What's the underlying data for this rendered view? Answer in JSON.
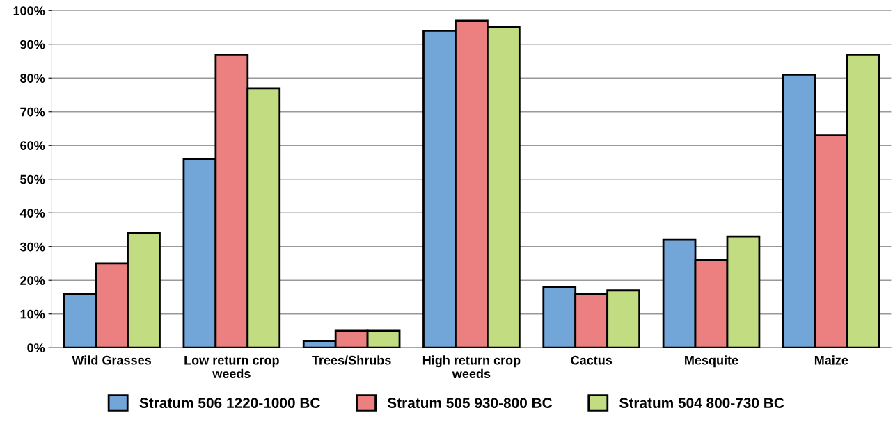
{
  "chart_data": {
    "type": "bar",
    "categories": [
      "Wild Grasses",
      "Low return crop\nweeds",
      "Trees/Shrubs",
      "High return crop\nweeds",
      "Cactus",
      "Mesquite",
      "Maize"
    ],
    "series": [
      {
        "name": "Stratum 506 1220-1000 BC",
        "color": "#72a6d8",
        "values": [
          16,
          56,
          2,
          94,
          18,
          32,
          81
        ]
      },
      {
        "name": "Stratum 505 930-800 BC",
        "color": "#ec7f7f",
        "values": [
          25,
          87,
          5,
          97,
          16,
          26,
          63
        ]
      },
      {
        "name": "Stratum 504 800-730 BC",
        "color": "#c2dc82",
        "values": [
          34,
          77,
          5,
          95,
          17,
          33,
          87
        ]
      }
    ],
    "ylim": [
      0,
      100
    ],
    "yticks": [
      {
        "value": 0,
        "label": "0%"
      },
      {
        "value": 10,
        "label": "10%"
      },
      {
        "value": 20,
        "label": "20%"
      },
      {
        "value": 30,
        "label": "30%"
      },
      {
        "value": 40,
        "label": "40%"
      },
      {
        "value": 50,
        "label": "50%"
      },
      {
        "value": 60,
        "label": "60%"
      },
      {
        "value": 70,
        "label": "70%"
      },
      {
        "value": 80,
        "label": "80%"
      },
      {
        "value": 90,
        "label": "90%"
      },
      {
        "value": 100,
        "label": "100%"
      }
    ],
    "grid": "y",
    "legend": "bottom"
  }
}
